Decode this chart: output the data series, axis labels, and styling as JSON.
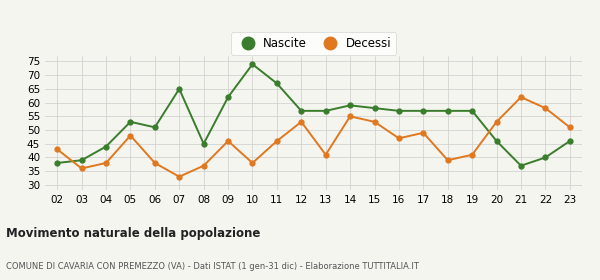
{
  "years": [
    "02",
    "03",
    "04",
    "05",
    "06",
    "07",
    "08",
    "09",
    "10",
    "11",
    "12",
    "13",
    "14",
    "15",
    "16",
    "17",
    "18",
    "19",
    "20",
    "21",
    "22",
    "23"
  ],
  "nascite": [
    38,
    39,
    44,
    53,
    51,
    65,
    45,
    62,
    74,
    67,
    57,
    57,
    59,
    58,
    57,
    57,
    57,
    57,
    46,
    37,
    40,
    46
  ],
  "decessi": [
    43,
    36,
    38,
    48,
    38,
    33,
    37,
    46,
    38,
    46,
    53,
    41,
    55,
    53,
    47,
    49,
    39,
    41,
    53,
    62,
    58,
    51
  ],
  "nascite_color": "#3a7d2c",
  "decessi_color": "#e07820",
  "background_color": "#f5f5f0",
  "grid_color": "#cccccc",
  "title": "Movimento naturale della popolazione",
  "subtitle": "COMUNE DI CAVARIA CON PREMEZZO (VA) - Dati ISTAT (1 gen-31 dic) - Elaborazione TUTTITALIA.IT",
  "ylim": [
    28,
    77
  ],
  "yticks": [
    30,
    35,
    40,
    45,
    50,
    55,
    60,
    65,
    70,
    75
  ],
  "legend_nascite": "Nascite",
  "legend_decessi": "Decessi"
}
